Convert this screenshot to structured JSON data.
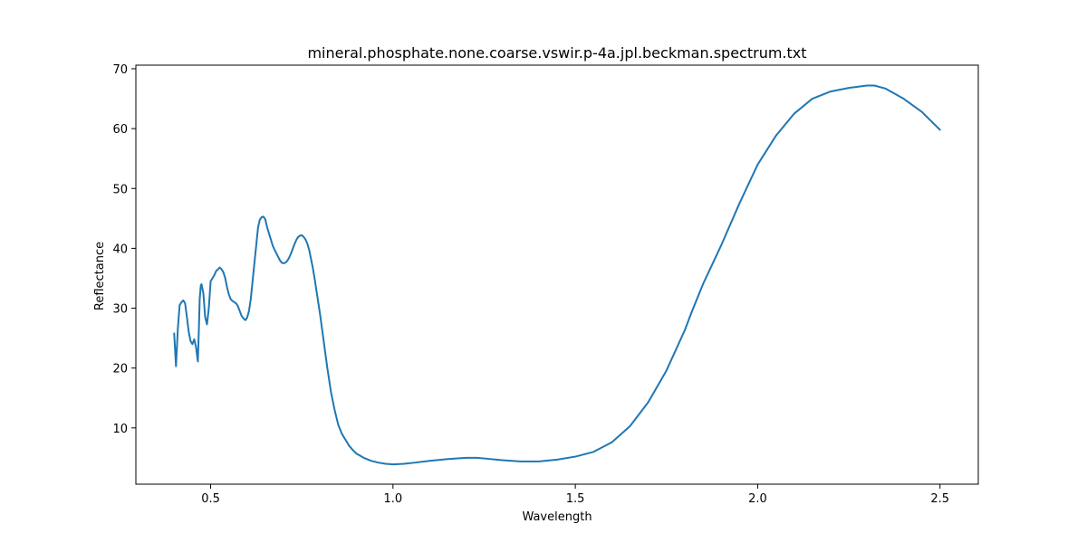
{
  "chart_data": {
    "type": "line",
    "title": "mineral.phosphate.none.coarse.vswir.p-4a.jpl.beckman.spectrum.txt",
    "xlabel": "Wavelength",
    "ylabel": "Reflectance",
    "xlim": [
      0.295,
      2.605
    ],
    "ylim": [
      0.6,
      70.6
    ],
    "xticks": [
      0.5,
      1.0,
      1.5,
      2.0,
      2.5
    ],
    "xtick_labels": [
      "0.5",
      "1.0",
      "1.5",
      "2.0",
      "2.5"
    ],
    "yticks": [
      10,
      20,
      30,
      40,
      50,
      60,
      70
    ],
    "ytick_labels": [
      "10",
      "20",
      "30",
      "40",
      "50",
      "60",
      "70"
    ],
    "grid": false,
    "legend": "none",
    "colors": {
      "line": "#1f77b4",
      "axes": "#000000",
      "background": "#ffffff"
    },
    "series": [
      {
        "x": [
          0.4,
          0.405,
          0.41,
          0.415,
          0.42,
          0.425,
          0.43,
          0.435,
          0.44,
          0.445,
          0.45,
          0.455,
          0.46,
          0.463,
          0.465,
          0.468,
          0.47,
          0.473,
          0.475,
          0.48,
          0.485,
          0.49,
          0.495,
          0.5,
          0.505,
          0.51,
          0.515,
          0.52,
          0.525,
          0.53,
          0.535,
          0.54,
          0.545,
          0.55,
          0.555,
          0.56,
          0.565,
          0.57,
          0.575,
          0.58,
          0.585,
          0.59,
          0.595,
          0.6,
          0.605,
          0.61,
          0.615,
          0.62,
          0.625,
          0.63,
          0.635,
          0.64,
          0.645,
          0.65,
          0.655,
          0.66,
          0.665,
          0.67,
          0.675,
          0.68,
          0.685,
          0.69,
          0.695,
          0.7,
          0.705,
          0.71,
          0.715,
          0.72,
          0.725,
          0.73,
          0.735,
          0.74,
          0.745,
          0.75,
          0.755,
          0.76,
          0.765,
          0.77,
          0.775,
          0.78,
          0.785,
          0.79,
          0.795,
          0.8,
          0.81,
          0.82,
          0.83,
          0.84,
          0.85,
          0.86,
          0.87,
          0.88,
          0.89,
          0.9,
          0.92,
          0.94,
          0.96,
          0.98,
          1.0,
          1.03,
          1.06,
          1.1,
          1.15,
          1.2,
          1.23,
          1.25,
          1.3,
          1.35,
          1.4,
          1.45,
          1.5,
          1.55,
          1.6,
          1.65,
          1.7,
          1.75,
          1.8,
          1.82,
          1.85,
          1.9,
          1.95,
          2.0,
          2.05,
          2.1,
          2.15,
          2.2,
          2.25,
          2.3,
          2.32,
          2.35,
          2.4,
          2.45,
          2.5
        ],
        "y": [
          25.8,
          20.3,
          26.5,
          30.5,
          31.0,
          31.3,
          30.8,
          28.5,
          26.0,
          24.5,
          24.0,
          24.8,
          23.5,
          22.0,
          21.1,
          27.0,
          31.5,
          33.8,
          34.0,
          32.5,
          28.5,
          27.3,
          30.0,
          34.5,
          35.0,
          35.5,
          36.2,
          36.5,
          36.8,
          36.5,
          36.0,
          35.0,
          33.5,
          32.3,
          31.5,
          31.2,
          31.0,
          30.8,
          30.3,
          29.5,
          28.7,
          28.3,
          28.0,
          28.4,
          29.5,
          31.5,
          34.5,
          37.5,
          40.5,
          43.5,
          44.8,
          45.2,
          45.3,
          44.8,
          43.5,
          42.5,
          41.5,
          40.5,
          39.8,
          39.2,
          38.6,
          38.0,
          37.6,
          37.5,
          37.6,
          37.9,
          38.4,
          39.1,
          39.9,
          40.7,
          41.4,
          41.9,
          42.1,
          42.2,
          41.9,
          41.5,
          40.8,
          39.8,
          38.3,
          36.8,
          35.0,
          33.0,
          31.0,
          29.0,
          24.5,
          20.0,
          16.0,
          13.0,
          10.5,
          9.0,
          8.0,
          7.0,
          6.3,
          5.7,
          5.0,
          4.5,
          4.2,
          4.0,
          3.9,
          4.0,
          4.2,
          4.5,
          4.8,
          5.0,
          5.0,
          4.9,
          4.6,
          4.4,
          4.4,
          4.7,
          5.2,
          6.0,
          7.6,
          10.3,
          14.3,
          19.6,
          26.3,
          29.5,
          34.0,
          40.5,
          47.5,
          54.0,
          58.8,
          62.5,
          65.0,
          66.2,
          66.8,
          67.2,
          67.2,
          66.7,
          65.0,
          62.8,
          59.8
        ]
      }
    ]
  }
}
